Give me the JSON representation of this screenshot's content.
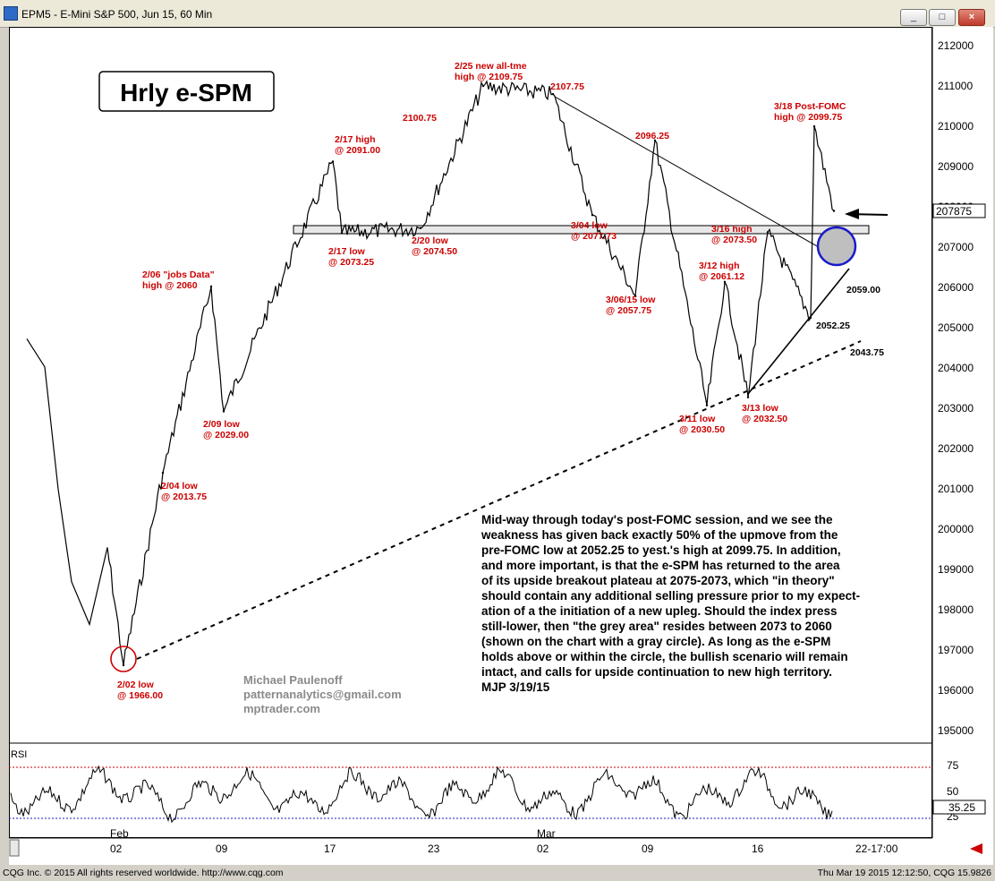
{
  "window": {
    "title": "EPM5 - E-Mini S&P 500, Jun 15, 60 Min",
    "min_label": "_",
    "max_label": "□",
    "close_label": "×"
  },
  "chart_title": "Hrly e-SPM",
  "price_axis": {
    "ticks": [
      "212000",
      "211000",
      "210000",
      "209000",
      "208000",
      "207000",
      "206000",
      "205000",
      "204000",
      "203000",
      "202000",
      "201000",
      "200000",
      "199000",
      "198000",
      "197000",
      "196000",
      "195000"
    ]
  },
  "last_price": "207875",
  "rsi": {
    "label": "RSI",
    "ticks": [
      "75",
      "50",
      "25"
    ],
    "current": "35.25"
  },
  "time_axis": {
    "months": [
      "Feb",
      "Mar"
    ],
    "days": [
      "02",
      "09",
      "17",
      "23",
      "02",
      "09",
      "16",
      "22-17:00"
    ]
  },
  "annotations": [
    {
      "l1": "2/25 new all-tme",
      "l2": "high @ 2109.75"
    },
    {
      "l1": "2107.75",
      "l2": ""
    },
    {
      "l1": "2100.75",
      "l2": ""
    },
    {
      "l1": "2/17 high",
      "l2": "@ 2091.00"
    },
    {
      "l1": "2096.25",
      "l2": ""
    },
    {
      "l1": "3/18 Post-FOMC",
      "l2": "high @ 2099.75"
    },
    {
      "l1": "2/17 low",
      "l2": "@ 2073.25"
    },
    {
      "l1": "2/20 low",
      "l2": "@ 2074.50"
    },
    {
      "l1": "3/04 low",
      "l2": "@ 2077.73"
    },
    {
      "l1": "3/16 high",
      "l2": "@ 2073.50"
    },
    {
      "l1": "2/06 \"jobs Data\"",
      "l2": "high @ 2060"
    },
    {
      "l1": "3/12 high",
      "l2": "@ 2061.12"
    },
    {
      "l1": "3/06/15 low",
      "l2": "@ 2057.75"
    },
    {
      "l1": "2/09 low",
      "l2": "@ 2029.00"
    },
    {
      "l1": "2/04 low",
      "l2": "@ 2013.75"
    },
    {
      "l1": "3/11 low",
      "l2": "@ 2030.50"
    },
    {
      "l1": "3/13 low",
      "l2": "@ 2032.50"
    },
    {
      "l1": "2/02 low",
      "l2": "@ 1966.00"
    }
  ],
  "level_labels": [
    "2059.00",
    "2052.25",
    "2043.75"
  ],
  "commentary": [
    "Mid-way through today's post-FOMC session, and we see the",
    "weakness has given back exactly 50% of the upmove from the",
    "pre-FOMC low at 2052.25 to yest.'s high at 2099.75. In addition,",
    "and more important, is that the e-SPM has returned to the area",
    "of its upside breakout plateau at 2075-2073, which \"in theory\"",
    "should contain any additional selling pressure prior to my expect-",
    "ation of a the initiation of a new upleg. Should the index press",
    "still-lower, then \"the grey area\" resides between 2073 to 2060",
    "(shown on the chart with a gray circle). As long as the e-SPM",
    "holds above or within the circle, the bullish scenario will remain",
    "intact, and calls for upside continuation to new high territory.",
    "MJP 3/19/15"
  ],
  "signature": [
    "Michael Paulenoff",
    "patternanalytics@gmail.com",
    "mptrader.com"
  ],
  "footer": {
    "left": "CQG Inc. © 2015 All rights reserved worldwide. http://www.cqg.com",
    "right": "Thu Mar 19 2015 12:12:50, CQG 15.9826"
  },
  "chart_data": {
    "type": "line",
    "title": "Hrly e-SPM",
    "x": [
      "02/02",
      "02/04",
      "02/06",
      "02/09",
      "02/17",
      "02/17",
      "02/20",
      "02/25",
      "03/02",
      "03/04",
      "03/06",
      "03/09",
      "03/11",
      "03/12",
      "03/13",
      "03/16",
      "03/17",
      "03/18",
      "03/19"
    ],
    "series": [
      {
        "values": [
          1966.0,
          2013.75,
          2060.0,
          2029.0,
          2091.0,
          2073.25,
          2074.5,
          2109.75,
          2107.75,
          2077.73,
          2057.75,
          2096.25,
          2030.5,
          2061.12,
          2032.5,
          2073.5,
          2052.25,
          2099.75,
          2078.75
        ]
      }
    ],
    "ylim": [
      1950,
      2122
    ],
    "y_axis_labels": [
      "212000",
      "195000"
    ],
    "grid": false,
    "colors": {
      "price": "#000000",
      "annotation": "#cc0000",
      "circle": "#0000cc",
      "rsi_band": "#cc0000"
    }
  }
}
